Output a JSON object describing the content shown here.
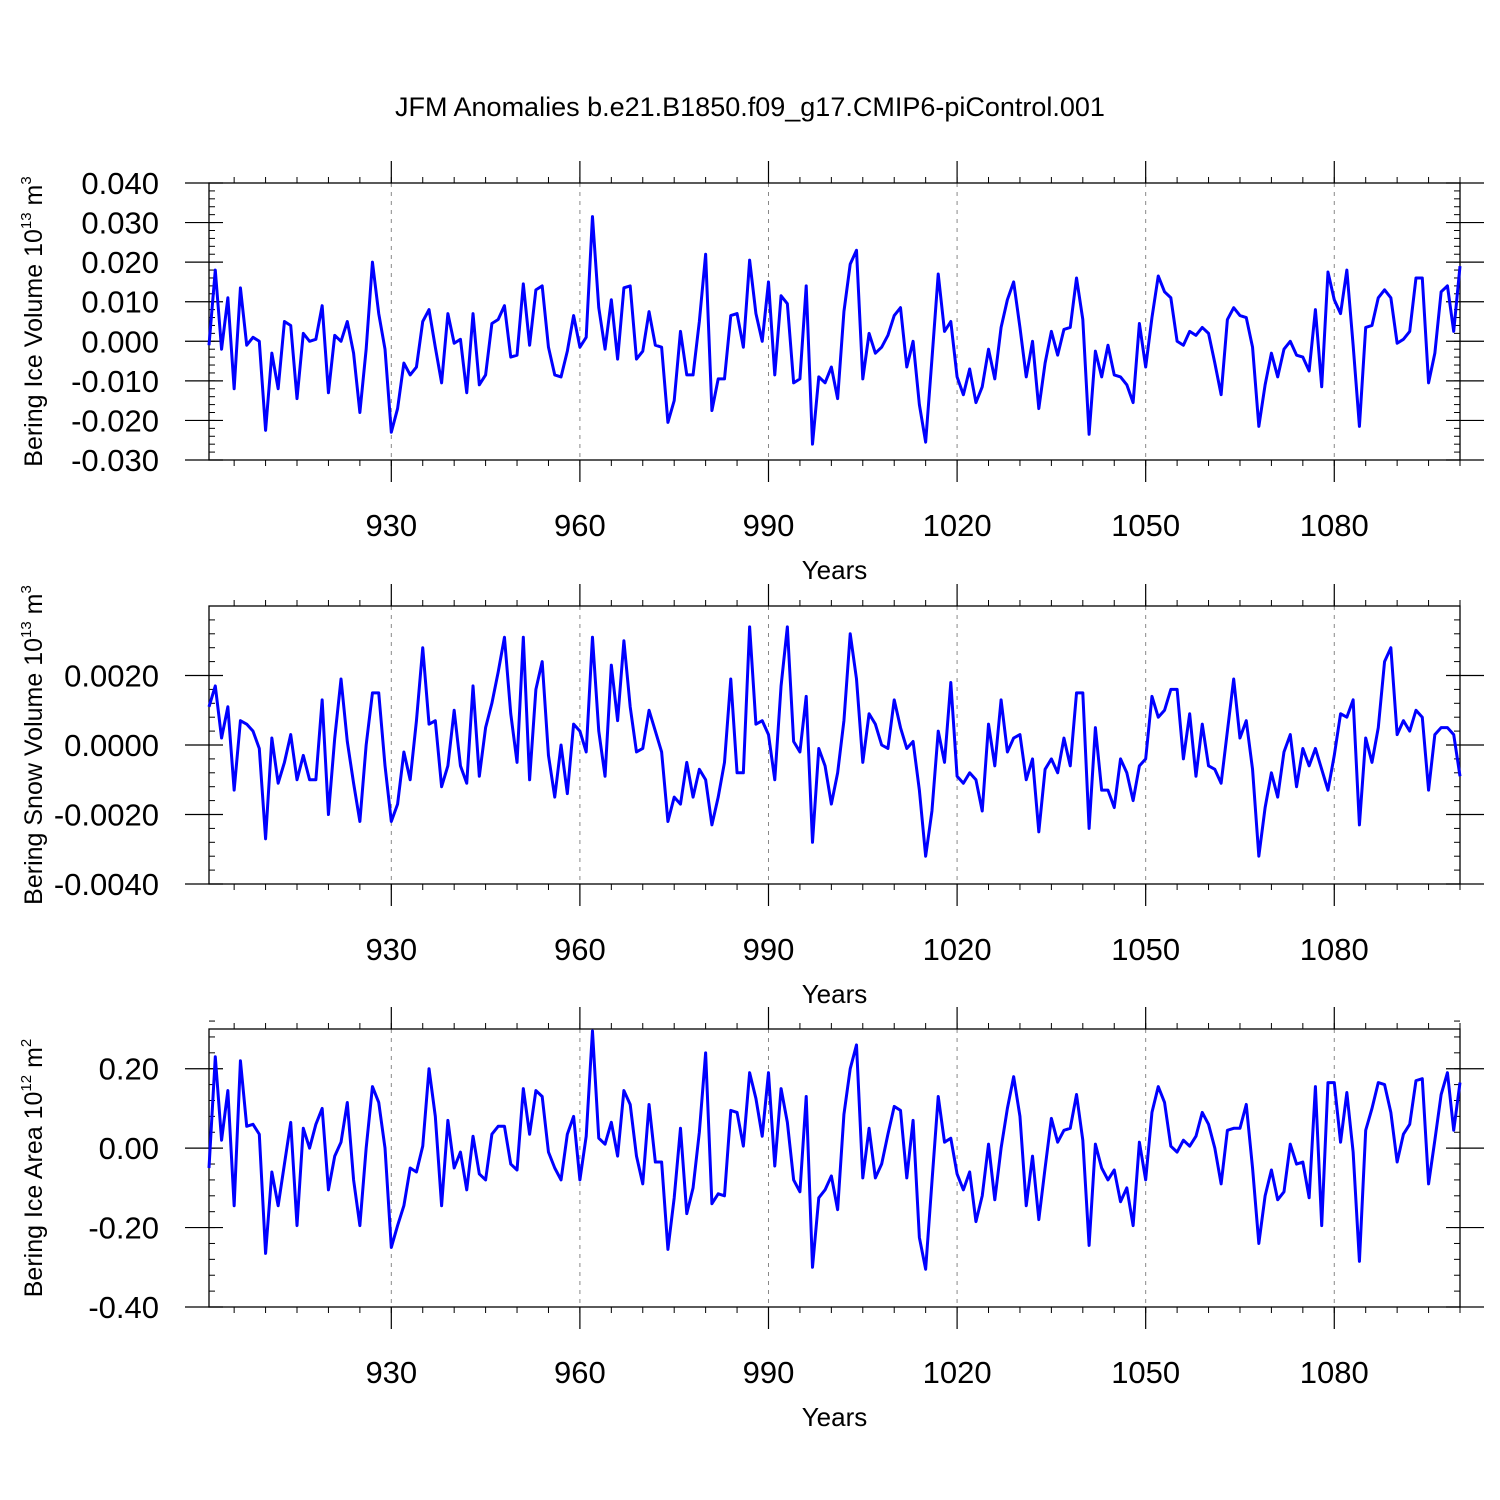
{
  "title": "JFM Anomalies b.e21.B1850.f09_g17.CMIP6-piControl.001",
  "chart_data": [
    {
      "type": "line",
      "title": "JFM Anomalies b.e21.B1850.f09_g17.CMIP6-piControl.001",
      "xlabel": "Years",
      "ylabel": "Bering Ice Volume 10",
      "ylabel_sup": "13",
      "ylabel_unit": " m",
      "ylabel_unit_sup": "3",
      "x_start": 901,
      "xlim": [
        901,
        1100
      ],
      "ylim": [
        -0.03,
        0.04
      ],
      "x_ticks": [
        930,
        960,
        990,
        1020,
        1050,
        1080
      ],
      "x_tick_labels": [
        "930",
        "960",
        "990",
        "1020",
        "1050",
        "1080"
      ],
      "y_ticks": [
        -0.03,
        -0.02,
        -0.01,
        0.0,
        0.01,
        0.02,
        0.03,
        0.04
      ],
      "y_tick_labels": [
        "-0.030",
        "-0.020",
        "-0.010",
        "0.000",
        "0.010",
        "0.020",
        "0.030",
        "0.040"
      ],
      "line_color": "#0000ff",
      "grid": "dashed vertical lines at x ticks",
      "values": [
        -0.001,
        0.018,
        -0.002,
        0.011,
        -0.012,
        0.0135,
        -0.001,
        0.001,
        0.0,
        -0.0225,
        -0.003,
        -0.012,
        0.005,
        0.004,
        -0.0145,
        0.002,
        0.0,
        0.0005,
        0.009,
        -0.013,
        0.0015,
        0.0,
        0.005,
        -0.003,
        -0.018,
        -0.002,
        0.02,
        0.007,
        -0.002,
        -0.023,
        -0.017,
        -0.0055,
        -0.0085,
        -0.0065,
        0.005,
        0.008,
        -0.0015,
        -0.0105,
        0.007,
        -0.0005,
        0.0005,
        -0.013,
        0.007,
        -0.011,
        -0.0085,
        0.0045,
        0.0055,
        0.009,
        -0.004,
        -0.0035,
        0.0145,
        -0.001,
        0.013,
        0.014,
        -0.0015,
        -0.0085,
        -0.009,
        -0.0025,
        0.0065,
        -0.0015,
        0.001,
        0.0315,
        0.0085,
        -0.002,
        0.0105,
        -0.0045,
        0.0135,
        0.014,
        -0.0045,
        -0.0025,
        0.0075,
        -0.001,
        -0.0015,
        -0.0205,
        -0.015,
        0.0025,
        -0.0085,
        -0.0085,
        0.005,
        0.022,
        -0.0175,
        -0.0095,
        -0.0095,
        0.0065,
        0.007,
        -0.0015,
        0.0205,
        0.007,
        0.0,
        0.015,
        -0.0085,
        0.0115,
        0.0095,
        -0.0105,
        -0.0095,
        0.014,
        -0.026,
        -0.009,
        -0.0105,
        -0.0065,
        -0.0145,
        0.0075,
        0.0195,
        0.023,
        -0.0095,
        0.002,
        -0.003,
        -0.0015,
        0.0015,
        0.0065,
        0.0085,
        -0.0065,
        0.0,
        -0.016,
        -0.0255,
        -0.0045,
        0.017,
        0.0025,
        0.005,
        -0.009,
        -0.0135,
        -0.007,
        -0.0155,
        -0.0115,
        -0.002,
        -0.0095,
        0.0035,
        0.0105,
        0.015,
        0.0035,
        -0.009,
        0.0,
        -0.017,
        -0.0055,
        0.0025,
        -0.0035,
        0.003,
        0.0035,
        0.016,
        0.0055,
        -0.0235,
        -0.0025,
        -0.009,
        -0.001,
        -0.0085,
        -0.009,
        -0.011,
        -0.0155,
        0.0045,
        -0.0065,
        0.006,
        0.0165,
        0.0125,
        0.011,
        0.0,
        -0.001,
        0.0025,
        0.0015,
        0.0035,
        0.002,
        -0.0055,
        -0.0135,
        0.0055,
        0.0085,
        0.0065,
        0.006,
        -0.0015,
        -0.0215,
        -0.011,
        -0.003,
        -0.009,
        -0.002,
        0.0,
        -0.0035,
        -0.004,
        -0.0075,
        0.008,
        -0.0115,
        0.0175,
        0.0105,
        0.007,
        0.018,
        -0.001,
        -0.0215,
        0.0035,
        0.004,
        0.011,
        0.013,
        0.011,
        -0.0005,
        0.0005,
        0.0025,
        0.016,
        0.016,
        -0.0105,
        -0.003,
        0.0125,
        0.014,
        0.0025,
        0.019
      ]
    },
    {
      "type": "line",
      "xlabel": "Years",
      "ylabel": "Bering Snow Volume 10",
      "ylabel_sup": "13",
      "ylabel_unit": " m",
      "ylabel_unit_sup": "3",
      "x_start": 901,
      "xlim": [
        901,
        1100
      ],
      "ylim": [
        -0.004,
        0.004
      ],
      "x_ticks": [
        930,
        960,
        990,
        1020,
        1050,
        1080
      ],
      "x_tick_labels": [
        "930",
        "960",
        "990",
        "1020",
        "1050",
        "1080"
      ],
      "y_ticks": [
        -0.004,
        -0.002,
        0.0,
        0.002
      ],
      "y_tick_labels": [
        "-0.0040",
        "-0.0020",
        "0.0000",
        "0.0020"
      ],
      "line_color": "#0000ff",
      "grid": "dashed vertical lines at x ticks",
      "values": [
        0.0011,
        0.0017,
        0.0002,
        0.0011,
        -0.0013,
        0.0007,
        0.0006,
        0.0004,
        -0.0001,
        -0.0027,
        0.0002,
        -0.0011,
        -0.0005,
        0.0003,
        -0.001,
        -0.0003,
        -0.001,
        -0.001,
        0.0013,
        -0.002,
        0.0002,
        0.0019,
        0.0001,
        -0.0011,
        -0.0022,
        0.0,
        0.0015,
        0.0015,
        -0.0006,
        -0.0022,
        -0.0017,
        -0.0002,
        -0.001,
        0.0007,
        0.0028,
        0.0006,
        0.0007,
        -0.0012,
        -0.0006,
        0.001,
        -0.0006,
        -0.0011,
        0.0017,
        -0.0009,
        0.0005,
        0.0012,
        0.0021,
        0.0031,
        0.0009,
        -0.0005,
        0.0031,
        -0.001,
        0.0016,
        0.0024,
        -0.0003,
        -0.0015,
        0.0,
        -0.0014,
        0.0006,
        0.0004,
        -0.0002,
        0.0031,
        0.0004,
        -0.0009,
        0.0023,
        0.0007,
        0.003,
        0.0011,
        -0.0002,
        -0.0001,
        0.001,
        0.0004,
        -0.0002,
        -0.0022,
        -0.0015,
        -0.0017,
        -0.0005,
        -0.0015,
        -0.0007,
        -0.001,
        -0.0023,
        -0.0015,
        -0.0005,
        0.0019,
        -0.0008,
        -0.0008,
        0.0034,
        0.0006,
        0.0007,
        0.0003,
        -0.001,
        0.0017,
        0.0034,
        0.0001,
        -0.0002,
        0.0014,
        -0.0028,
        -0.0001,
        -0.0006,
        -0.0017,
        -0.0008,
        0.0007,
        0.0032,
        0.0019,
        -0.0005,
        0.0009,
        0.0006,
        0.0,
        -0.0001,
        0.0013,
        0.0005,
        -0.0001,
        0.0001,
        -0.0013,
        -0.0032,
        -0.0019,
        0.0004,
        -0.0005,
        0.0018,
        -0.0009,
        -0.0011,
        -0.0008,
        -0.001,
        -0.0019,
        0.0006,
        -0.0006,
        0.0013,
        -0.0002,
        0.0002,
        0.0003,
        -0.001,
        -0.0004,
        -0.0025,
        -0.0007,
        -0.0004,
        -0.0008,
        0.0002,
        -0.0006,
        0.0015,
        0.0015,
        -0.0024,
        0.0005,
        -0.0013,
        -0.0013,
        -0.0018,
        -0.0004,
        -0.0008,
        -0.0016,
        -0.0006,
        -0.0004,
        0.0014,
        0.0008,
        0.001,
        0.0016,
        0.0016,
        -0.0004,
        0.0009,
        -0.0009,
        0.0006,
        -0.0006,
        -0.0007,
        -0.0011,
        0.0004,
        0.0019,
        0.0002,
        0.0007,
        -0.0007,
        -0.0032,
        -0.0018,
        -0.0008,
        -0.0015,
        -0.0002,
        0.0003,
        -0.0012,
        -0.0001,
        -0.0006,
        -0.0001,
        -0.0007,
        -0.0013,
        -0.0003,
        0.0009,
        0.0008,
        0.0013,
        -0.0023,
        0.0002,
        -0.0005,
        0.0005,
        0.0024,
        0.0028,
        0.0003,
        0.0007,
        0.0004,
        0.001,
        0.0008,
        -0.0013,
        0.0003,
        0.0005,
        0.0005,
        0.0003,
        -0.0009
      ]
    },
    {
      "type": "line",
      "xlabel": "Years",
      "ylabel": "Bering Ice Area 10",
      "ylabel_sup": "12",
      "ylabel_unit": " m",
      "ylabel_unit_sup": "2",
      "x_start": 901,
      "xlim": [
        901,
        1100
      ],
      "ylim": [
        -0.4,
        0.3
      ],
      "x_ticks": [
        930,
        960,
        990,
        1020,
        1050,
        1080
      ],
      "x_tick_labels": [
        "930",
        "960",
        "990",
        "1020",
        "1050",
        "1080"
      ],
      "y_ticks": [
        -0.4,
        -0.2,
        0.0,
        0.2
      ],
      "y_tick_labels": [
        "-0.40",
        "-0.20",
        "0.00",
        "0.20"
      ],
      "line_color": "#0000ff",
      "grid": "dashed vertical lines at x ticks",
      "values": [
        -0.05,
        0.23,
        0.02,
        0.145,
        -0.145,
        0.22,
        0.055,
        0.06,
        0.035,
        -0.265,
        -0.06,
        -0.145,
        -0.04,
        0.065,
        -0.195,
        0.05,
        0.0,
        0.06,
        0.1,
        -0.105,
        -0.02,
        0.015,
        0.115,
        -0.08,
        -0.195,
        0.0,
        0.155,
        0.115,
        0.0,
        -0.25,
        -0.195,
        -0.145,
        -0.05,
        -0.06,
        0.005,
        0.2,
        0.08,
        -0.145,
        0.07,
        -0.05,
        -0.01,
        -0.105,
        0.03,
        -0.065,
        -0.08,
        0.035,
        0.055,
        0.055,
        -0.04,
        -0.055,
        0.15,
        0.035,
        0.145,
        0.13,
        -0.01,
        -0.05,
        -0.08,
        0.035,
        0.08,
        -0.08,
        0.03,
        0.295,
        0.025,
        0.01,
        0.065,
        -0.02,
        0.145,
        0.11,
        -0.02,
        -0.09,
        0.11,
        -0.035,
        -0.035,
        -0.255,
        -0.125,
        0.05,
        -0.165,
        -0.1,
        0.04,
        0.24,
        -0.14,
        -0.115,
        -0.12,
        0.095,
        0.09,
        0.005,
        0.19,
        0.125,
        0.03,
        0.19,
        -0.045,
        0.15,
        0.065,
        -0.08,
        -0.11,
        0.13,
        -0.3,
        -0.125,
        -0.105,
        -0.07,
        -0.155,
        0.085,
        0.2,
        0.26,
        -0.075,
        0.05,
        -0.075,
        -0.04,
        0.035,
        0.105,
        0.095,
        -0.075,
        0.07,
        -0.225,
        -0.305,
        -0.085,
        0.13,
        0.015,
        0.025,
        -0.065,
        -0.105,
        -0.06,
        -0.185,
        -0.12,
        0.01,
        -0.13,
        0.0,
        0.1,
        0.18,
        0.08,
        -0.145,
        -0.02,
        -0.18,
        -0.05,
        0.075,
        0.015,
        0.045,
        0.05,
        0.135,
        0.02,
        -0.245,
        0.01,
        -0.05,
        -0.08,
        -0.055,
        -0.135,
        -0.1,
        -0.195,
        0.015,
        -0.08,
        0.09,
        0.155,
        0.115,
        0.005,
        -0.01,
        0.02,
        0.005,
        0.03,
        0.09,
        0.06,
        0.0,
        -0.09,
        0.045,
        0.05,
        0.05,
        0.11,
        -0.05,
        -0.24,
        -0.12,
        -0.055,
        -0.13,
        -0.11,
        0.01,
        -0.04,
        -0.035,
        -0.125,
        0.155,
        -0.195,
        0.165,
        0.165,
        0.015,
        0.14,
        -0.01,
        -0.285,
        0.045,
        0.1,
        0.165,
        0.16,
        0.09,
        -0.035,
        0.035,
        0.06,
        0.17,
        0.175,
        -0.09,
        0.02,
        0.135,
        0.19,
        0.045,
        0.165
      ]
    }
  ]
}
